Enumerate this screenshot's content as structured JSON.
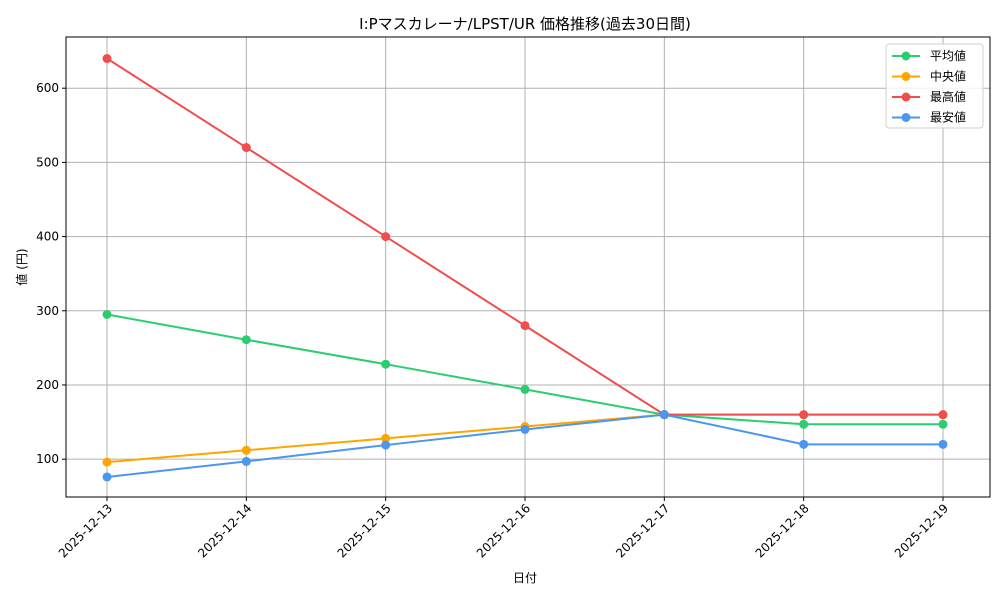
{
  "chart_data": {
    "type": "line",
    "title": "I:Pマスカレーナ/LPST/UR 価格推移(過去30日間)",
    "xlabel": "日付",
    "ylabel": "値 (円)",
    "categories": [
      "2025-12-13",
      "2025-12-14",
      "2025-12-15",
      "2025-12-16",
      "2025-12-17",
      "2025-12-18",
      "2025-12-19"
    ],
    "series": [
      {
        "name": "平均値",
        "color": "#2ecc71",
        "values": [
          295,
          261,
          228,
          194,
          160,
          147,
          147
        ]
      },
      {
        "name": "中央値",
        "color": "#ffa500",
        "values": [
          96,
          112,
          128,
          144,
          160,
          160,
          160
        ]
      },
      {
        "name": "最高値",
        "color": "#f04e4e",
        "values": [
          640,
          520,
          400,
          280,
          160,
          160,
          160
        ]
      },
      {
        "name": "最安値",
        "color": "#4b96f0",
        "values": [
          76,
          97,
          119,
          140,
          160,
          120,
          120
        ]
      }
    ],
    "yticks": [
      100,
      200,
      300,
      400,
      500,
      600
    ],
    "ylim": [
      49,
      669
    ],
    "grid": true,
    "legend_position": "upper right"
  }
}
